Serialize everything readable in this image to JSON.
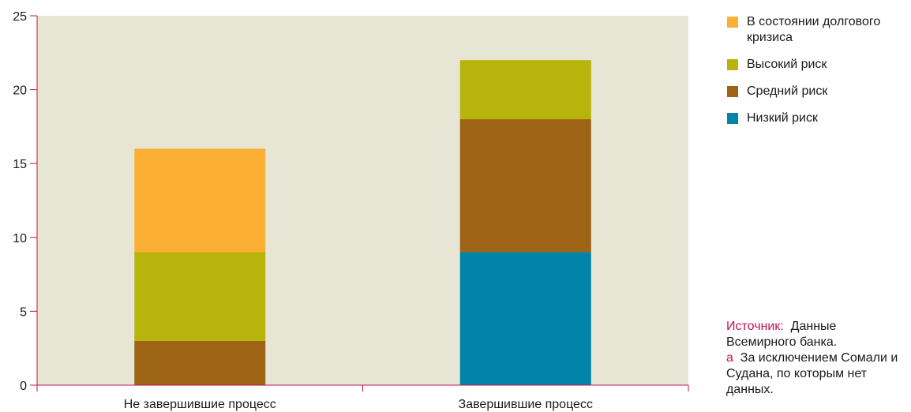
{
  "chart_data": {
    "type": "bar",
    "stacked": true,
    "categories": [
      "Не завершившие процесс",
      "Завершившие процесс"
    ],
    "series": [
      {
        "name": "Низкий риск",
        "color": "#0085a9",
        "values": [
          0,
          9
        ]
      },
      {
        "name": "Средний риск",
        "color": "#9e6416",
        "values": [
          3,
          9
        ]
      },
      {
        "name": "Высокий риск",
        "color": "#b8b40b",
        "values": [
          6,
          4
        ]
      },
      {
        "name": "В состоянии долгового кризиса",
        "color": "#fbaf34",
        "values": [
          7,
          0
        ]
      }
    ],
    "ylim": [
      0,
      25
    ],
    "yticks": [
      0,
      5,
      10,
      15,
      20,
      25
    ],
    "grid": false,
    "legend_position": "right",
    "plot_background": "#e7e5d4",
    "axis_color": "#c0144b"
  },
  "legend": {
    "items": [
      {
        "label": "В состоянии долгового кризиса",
        "color": "#fbaf34"
      },
      {
        "label": "Высокий риск",
        "color": "#b8b40b"
      },
      {
        "label": "Средний риск",
        "color": "#9e6416"
      },
      {
        "label": "Низкий риск",
        "color": "#0085a9"
      }
    ]
  },
  "notes": {
    "source_prefix": "Источник:",
    "source_text": "Данные Всемирного банка.",
    "footnote_marker": "a",
    "footnote_text": "За исключением Сомали и Судана, по которым нет данных."
  }
}
